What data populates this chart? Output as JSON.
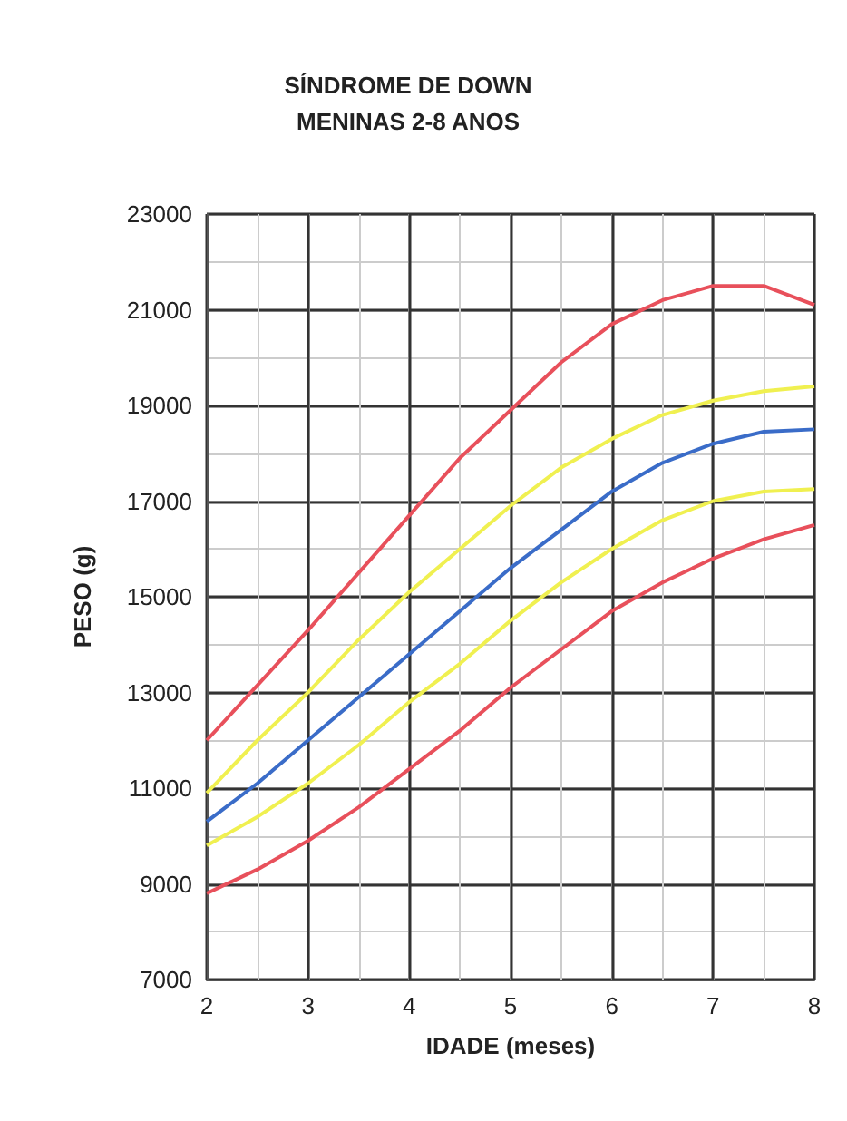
{
  "chart_data": {
    "type": "line",
    "title": "SÍNDROME DE DOWN\nMENINAS 2-8 ANOS",
    "xlabel": "IDADE (meses)",
    "ylabel": "PESO (g)",
    "x": [
      2,
      2.5,
      3,
      3.5,
      4,
      4.5,
      5,
      5.5,
      6,
      6.5,
      7,
      7.5,
      8
    ],
    "series": [
      {
        "color": "#e8505b",
        "values": [
          12000,
          13150,
          14300,
          15500,
          16700,
          17900,
          18900,
          19900,
          20700,
          21200,
          21500,
          21500,
          21100
        ]
      },
      {
        "color": "#f0f050",
        "values": [
          10900,
          12000,
          13000,
          14100,
          15100,
          16000,
          16900,
          17700,
          18300,
          18800,
          19100,
          19300,
          19400
        ]
      },
      {
        "color": "#3a6cc8",
        "values": [
          10300,
          11100,
          12000,
          12900,
          13800,
          14700,
          15600,
          16400,
          17200,
          17800,
          18200,
          18450,
          18500
        ]
      },
      {
        "color": "#f0f050",
        "values": [
          9800,
          10400,
          11100,
          11900,
          12800,
          13600,
          14500,
          15300,
          16000,
          16600,
          17000,
          17200,
          17250
        ]
      },
      {
        "color": "#e8505b",
        "values": [
          8800,
          9300,
          9900,
          10600,
          11400,
          12200,
          13100,
          13900,
          14700,
          15300,
          15800,
          16200,
          16500
        ]
      }
    ],
    "xlim": [
      2,
      8
    ],
    "xticks": [
      2,
      3,
      4,
      5,
      6,
      7,
      8
    ],
    "ylim": [
      7000,
      23000
    ],
    "yticks": [
      7000,
      9000,
      11000,
      13000,
      15000,
      17000,
      19000,
      21000,
      23000
    ],
    "grid": true,
    "marker": "none",
    "line_style": "solid"
  }
}
